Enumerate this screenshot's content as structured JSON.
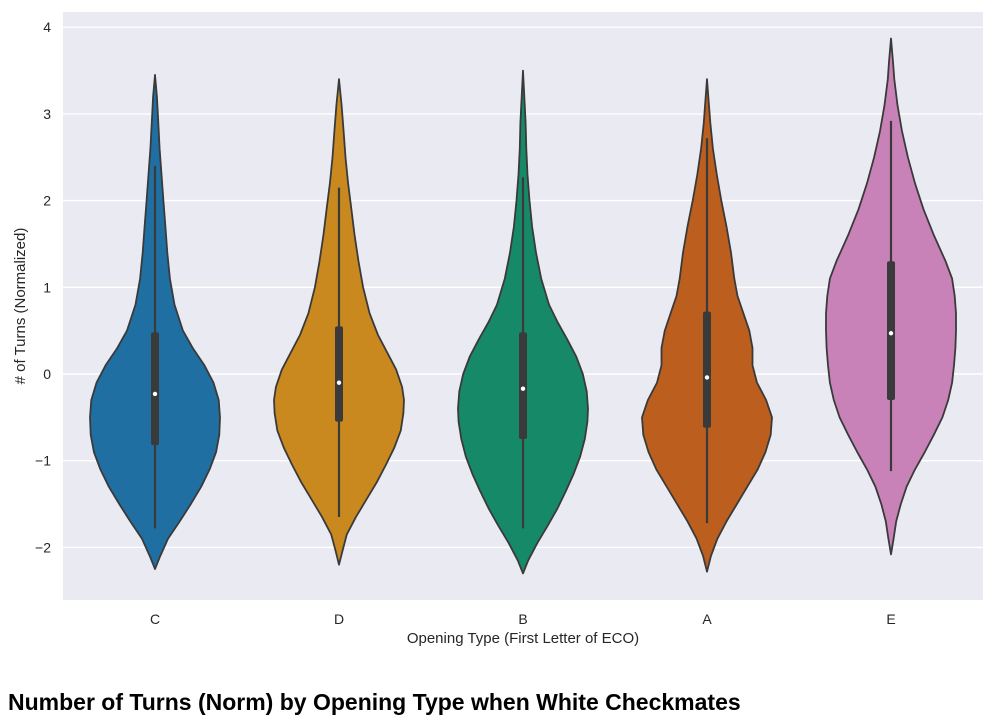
{
  "caption": "Number of Turns (Norm) by Opening Type when White Checkmates",
  "chart_data": {
    "type": "violin",
    "title": "",
    "xlabel": "Opening Type (First Letter of ECO)",
    "ylabel": "# of Turns (Normalized)",
    "ylim": [
      -2.6,
      4.2
    ],
    "yticks": [
      {
        "value": -2,
        "label": "−2"
      },
      {
        "value": -1,
        "label": "−1"
      },
      {
        "value": 0,
        "label": "0"
      },
      {
        "value": 1,
        "label": "1"
      },
      {
        "value": 2,
        "label": "2"
      },
      {
        "value": 3,
        "label": "3"
      },
      {
        "value": 4,
        "label": "4"
      }
    ],
    "grid": true,
    "background": "#eaeaf2",
    "categories": [
      "C",
      "D",
      "B",
      "A",
      "E"
    ],
    "violins": [
      {
        "category": "C",
        "color": "#1f6fa3",
        "min": -2.25,
        "max": 3.45,
        "whisker_low": -1.78,
        "whisker_high": 2.4,
        "q1": -0.82,
        "q3": 0.48,
        "median": -0.23,
        "profile": [
          [
            -2.25,
            0.0
          ],
          [
            -2.1,
            0.08
          ],
          [
            -1.9,
            0.2
          ],
          [
            -1.7,
            0.38
          ],
          [
            -1.5,
            0.55
          ],
          [
            -1.3,
            0.71
          ],
          [
            -1.1,
            0.84
          ],
          [
            -0.9,
            0.94
          ],
          [
            -0.7,
            0.99
          ],
          [
            -0.5,
            1.0
          ],
          [
            -0.3,
            0.98
          ],
          [
            -0.1,
            0.9
          ],
          [
            0.1,
            0.76
          ],
          [
            0.3,
            0.58
          ],
          [
            0.5,
            0.43
          ],
          [
            0.8,
            0.3
          ],
          [
            1.1,
            0.23
          ],
          [
            1.4,
            0.19
          ],
          [
            1.7,
            0.16
          ],
          [
            2.0,
            0.13
          ],
          [
            2.3,
            0.1
          ],
          [
            2.6,
            0.07
          ],
          [
            2.9,
            0.05
          ],
          [
            3.2,
            0.03
          ],
          [
            3.45,
            0.0
          ]
        ]
      },
      {
        "category": "D",
        "color": "#c9891f",
        "min": -2.2,
        "max": 3.4,
        "whisker_low": -1.65,
        "whisker_high": 2.15,
        "q1": -0.55,
        "q3": 0.55,
        "median": -0.1,
        "profile": [
          [
            -2.2,
            0.0
          ],
          [
            -2.05,
            0.05
          ],
          [
            -1.85,
            0.12
          ],
          [
            -1.65,
            0.26
          ],
          [
            -1.45,
            0.42
          ],
          [
            -1.25,
            0.58
          ],
          [
            -1.05,
            0.72
          ],
          [
            -0.85,
            0.85
          ],
          [
            -0.65,
            0.95
          ],
          [
            -0.45,
            0.99
          ],
          [
            -0.3,
            1.0
          ],
          [
            -0.15,
            0.97
          ],
          [
            0.05,
            0.88
          ],
          [
            0.25,
            0.74
          ],
          [
            0.45,
            0.6
          ],
          [
            0.7,
            0.47
          ],
          [
            1.0,
            0.37
          ],
          [
            1.3,
            0.3
          ],
          [
            1.6,
            0.24
          ],
          [
            1.9,
            0.19
          ],
          [
            2.2,
            0.14
          ],
          [
            2.5,
            0.1
          ],
          [
            2.8,
            0.07
          ],
          [
            3.1,
            0.04
          ],
          [
            3.4,
            0.0
          ]
        ]
      },
      {
        "category": "B",
        "color": "#168a68",
        "min": -2.3,
        "max": 3.5,
        "whisker_low": -1.78,
        "whisker_high": 2.27,
        "q1": -0.75,
        "q3": 0.48,
        "median": -0.17,
        "profile": [
          [
            -2.3,
            0.0
          ],
          [
            -2.15,
            0.08
          ],
          [
            -1.95,
            0.22
          ],
          [
            -1.75,
            0.38
          ],
          [
            -1.55,
            0.53
          ],
          [
            -1.35,
            0.66
          ],
          [
            -1.15,
            0.78
          ],
          [
            -0.95,
            0.88
          ],
          [
            -0.75,
            0.95
          ],
          [
            -0.55,
            0.99
          ],
          [
            -0.4,
            1.0
          ],
          [
            -0.2,
            0.98
          ],
          [
            0.0,
            0.92
          ],
          [
            0.2,
            0.82
          ],
          [
            0.4,
            0.68
          ],
          [
            0.6,
            0.53
          ],
          [
            0.8,
            0.4
          ],
          [
            1.1,
            0.28
          ],
          [
            1.4,
            0.2
          ],
          [
            1.7,
            0.14
          ],
          [
            2.0,
            0.1
          ],
          [
            2.3,
            0.07
          ],
          [
            2.6,
            0.05
          ],
          [
            2.9,
            0.04
          ],
          [
            3.2,
            0.02
          ],
          [
            3.5,
            0.0
          ]
        ]
      },
      {
        "category": "A",
        "color": "#bc5f1e",
        "min": -2.28,
        "max": 3.4,
        "whisker_low": -1.72,
        "whisker_high": 2.72,
        "q1": -0.62,
        "q3": 0.72,
        "median": -0.04,
        "profile": [
          [
            -2.28,
            0.0
          ],
          [
            -2.1,
            0.06
          ],
          [
            -1.9,
            0.16
          ],
          [
            -1.7,
            0.3
          ],
          [
            -1.5,
            0.46
          ],
          [
            -1.3,
            0.62
          ],
          [
            -1.1,
            0.78
          ],
          [
            -0.9,
            0.9
          ],
          [
            -0.7,
            0.98
          ],
          [
            -0.5,
            1.0
          ],
          [
            -0.3,
            0.91
          ],
          [
            -0.1,
            0.77
          ],
          [
            0.1,
            0.7
          ],
          [
            0.3,
            0.7
          ],
          [
            0.5,
            0.65
          ],
          [
            0.7,
            0.56
          ],
          [
            0.9,
            0.47
          ],
          [
            1.1,
            0.42
          ],
          [
            1.4,
            0.37
          ],
          [
            1.7,
            0.3
          ],
          [
            2.0,
            0.22
          ],
          [
            2.3,
            0.15
          ],
          [
            2.6,
            0.09
          ],
          [
            2.9,
            0.05
          ],
          [
            3.2,
            0.02
          ],
          [
            3.4,
            0.0
          ]
        ]
      },
      {
        "category": "E",
        "color": "#c882b8",
        "min": -2.08,
        "max": 3.87,
        "whisker_low": -1.12,
        "whisker_high": 2.92,
        "q1": -0.3,
        "q3": 1.3,
        "median": 0.47,
        "profile": [
          [
            -2.08,
            0.0
          ],
          [
            -1.9,
            0.04
          ],
          [
            -1.7,
            0.08
          ],
          [
            -1.5,
            0.15
          ],
          [
            -1.3,
            0.24
          ],
          [
            -1.1,
            0.37
          ],
          [
            -0.9,
            0.52
          ],
          [
            -0.7,
            0.66
          ],
          [
            -0.5,
            0.79
          ],
          [
            -0.3,
            0.88
          ],
          [
            -0.1,
            0.94
          ],
          [
            0.1,
            0.97
          ],
          [
            0.3,
            0.99
          ],
          [
            0.5,
            1.0
          ],
          [
            0.7,
            1.0
          ],
          [
            0.9,
            0.98
          ],
          [
            1.1,
            0.94
          ],
          [
            1.3,
            0.84
          ],
          [
            1.6,
            0.66
          ],
          [
            1.9,
            0.5
          ],
          [
            2.2,
            0.37
          ],
          [
            2.5,
            0.26
          ],
          [
            2.8,
            0.17
          ],
          [
            3.1,
            0.1
          ],
          [
            3.4,
            0.05
          ],
          [
            3.6,
            0.03
          ],
          [
            3.87,
            0.0
          ]
        ]
      }
    ]
  }
}
